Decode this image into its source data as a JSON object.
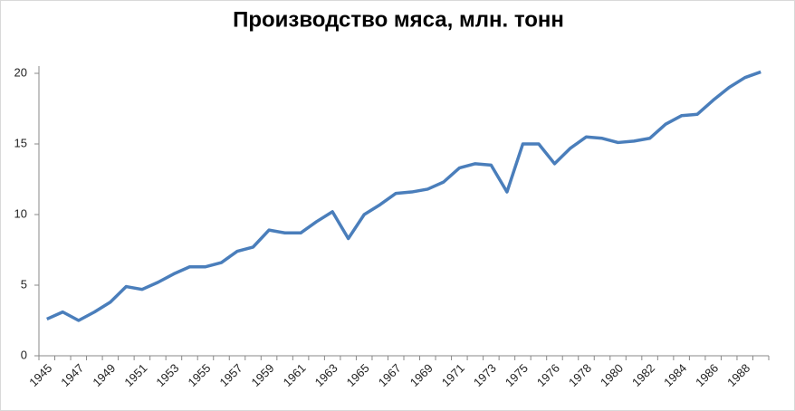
{
  "chart_data": {
    "type": "line",
    "title": "Производство мяса, млн. тонн",
    "categories": [
      "1945",
      null,
      "1947",
      null,
      "1949",
      null,
      "1951",
      null,
      "1953",
      null,
      "1955",
      null,
      "1957",
      null,
      "1959",
      null,
      "1961",
      null,
      "1963",
      null,
      "1965",
      null,
      "1967",
      null,
      "1969",
      null,
      "1971",
      null,
      "1973",
      null,
      "1975",
      null,
      "1976",
      null,
      "1978",
      null,
      "1980",
      null,
      "1982",
      null,
      "1984",
      null,
      "1986",
      null,
      "1988",
      null
    ],
    "series": [
      {
        "name": "Производство мяса",
        "color": "#4a7ebb",
        "values": [
          2.6,
          3.1,
          2.5,
          3.1,
          3.8,
          4.9,
          4.7,
          5.2,
          5.8,
          6.3,
          6.3,
          6.6,
          7.4,
          7.7,
          8.9,
          8.7,
          8.7,
          9.5,
          10.2,
          8.3,
          10.0,
          10.7,
          11.5,
          11.6,
          11.8,
          12.3,
          13.3,
          13.6,
          13.5,
          11.6,
          15.0,
          15.0,
          13.6,
          14.7,
          15.5,
          15.4,
          15.1,
          15.2,
          15.4,
          16.4,
          17.0,
          17.1,
          18.1,
          19.0,
          19.7,
          20.1
        ]
      }
    ],
    "ylim": [
      0,
      20
    ],
    "yticks": [
      0,
      5,
      10,
      15,
      20
    ],
    "grid": false
  }
}
